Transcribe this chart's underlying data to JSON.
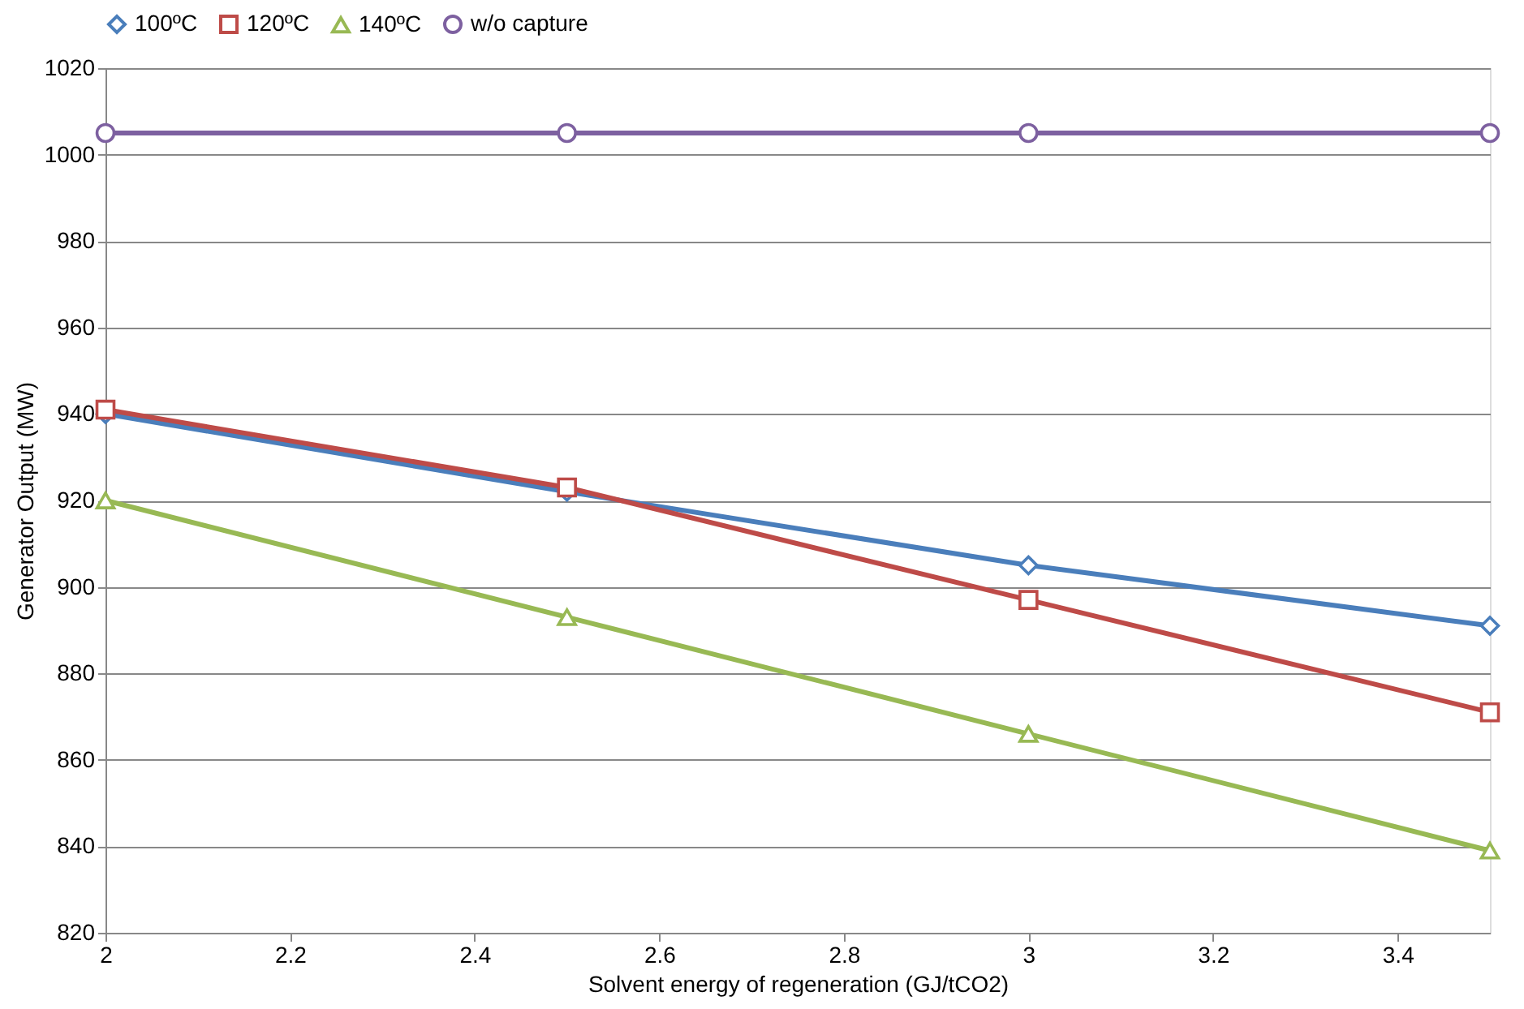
{
  "chart_data": {
    "type": "line",
    "xlabel": "Solvent energy of regeneration (GJ/tCO2)",
    "ylabel": "Generator Output (MW)",
    "x": [
      2,
      2.5,
      3,
      3.5
    ],
    "series": [
      {
        "name": "100ºC",
        "color": "#4a7ebb",
        "marker": "diamond",
        "values": [
          940,
          922,
          905,
          891
        ]
      },
      {
        "name": "120ºC",
        "color": "#be4b48",
        "marker": "square",
        "values": [
          941,
          923,
          897,
          871
        ]
      },
      {
        "name": "140ºC",
        "color": "#98b954",
        "marker": "triangle",
        "values": [
          920,
          893,
          866,
          839
        ]
      },
      {
        "name": "w/o capture",
        "color": "#7d60a0",
        "marker": "circle",
        "values": [
          1005,
          1005,
          1005,
          1005
        ]
      }
    ],
    "xlim": [
      2,
      3.5
    ],
    "xticks": [
      2,
      2.2,
      2.4,
      2.6,
      2.8,
      3,
      3.2,
      3.4
    ],
    "ylim": [
      820,
      1020
    ],
    "yticks": [
      820,
      840,
      860,
      880,
      900,
      920,
      940,
      960,
      980,
      1000,
      1020
    ],
    "grid": "y",
    "legend": "top",
    "line_style": "solid"
  }
}
